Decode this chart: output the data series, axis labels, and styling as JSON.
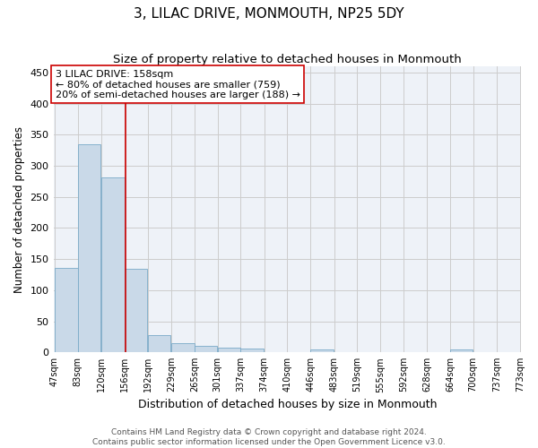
{
  "title": "3, LILAC DRIVE, MONMOUTH, NP25 5DY",
  "subtitle": "Size of property relative to detached houses in Monmouth",
  "xlabel": "Distribution of detached houses by size in Monmouth",
  "ylabel": "Number of detached properties",
  "bar_values": [
    136,
    335,
    282,
    135,
    27,
    15,
    11,
    7,
    6,
    0,
    0,
    5,
    0,
    0,
    0,
    0,
    0,
    4,
    0,
    0
  ],
  "bin_edges": [
    47,
    83,
    120,
    156,
    192,
    229,
    265,
    301,
    337,
    374,
    410,
    446,
    483,
    519,
    555,
    592,
    628,
    664,
    700,
    737,
    773
  ],
  "tick_labels": [
    "47sqm",
    "83sqm",
    "120sqm",
    "156sqm",
    "192sqm",
    "229sqm",
    "265sqm",
    "301sqm",
    "337sqm",
    "374sqm",
    "410sqm",
    "446sqm",
    "483sqm",
    "519sqm",
    "555sqm",
    "592sqm",
    "628sqm",
    "664sqm",
    "700sqm",
    "737sqm",
    "773sqm"
  ],
  "bar_color": "#c9d9e8",
  "bar_edge_color": "#7aaac8",
  "vline_x": 158,
  "vline_color": "#cc0000",
  "annotation_line1": "3 LILAC DRIVE: 158sqm",
  "annotation_line2": "← 80% of detached houses are smaller (759)",
  "annotation_line3": "20% of semi-detached houses are larger (188) →",
  "annotation_box_color": "#ffffff",
  "annotation_box_edge": "#cc0000",
  "ylim": [
    0,
    460
  ],
  "yticks": [
    0,
    50,
    100,
    150,
    200,
    250,
    300,
    350,
    400,
    450
  ],
  "grid_color": "#cccccc",
  "bg_color": "#eef2f8",
  "footer_line1": "Contains HM Land Registry data © Crown copyright and database right 2024.",
  "footer_line2": "Contains public sector information licensed under the Open Government Licence v3.0.",
  "title_fontsize": 11,
  "subtitle_fontsize": 9.5,
  "xlabel_fontsize": 9,
  "ylabel_fontsize": 8.5,
  "tick_fontsize": 7,
  "annotation_fontsize": 8,
  "footer_fontsize": 6.5
}
